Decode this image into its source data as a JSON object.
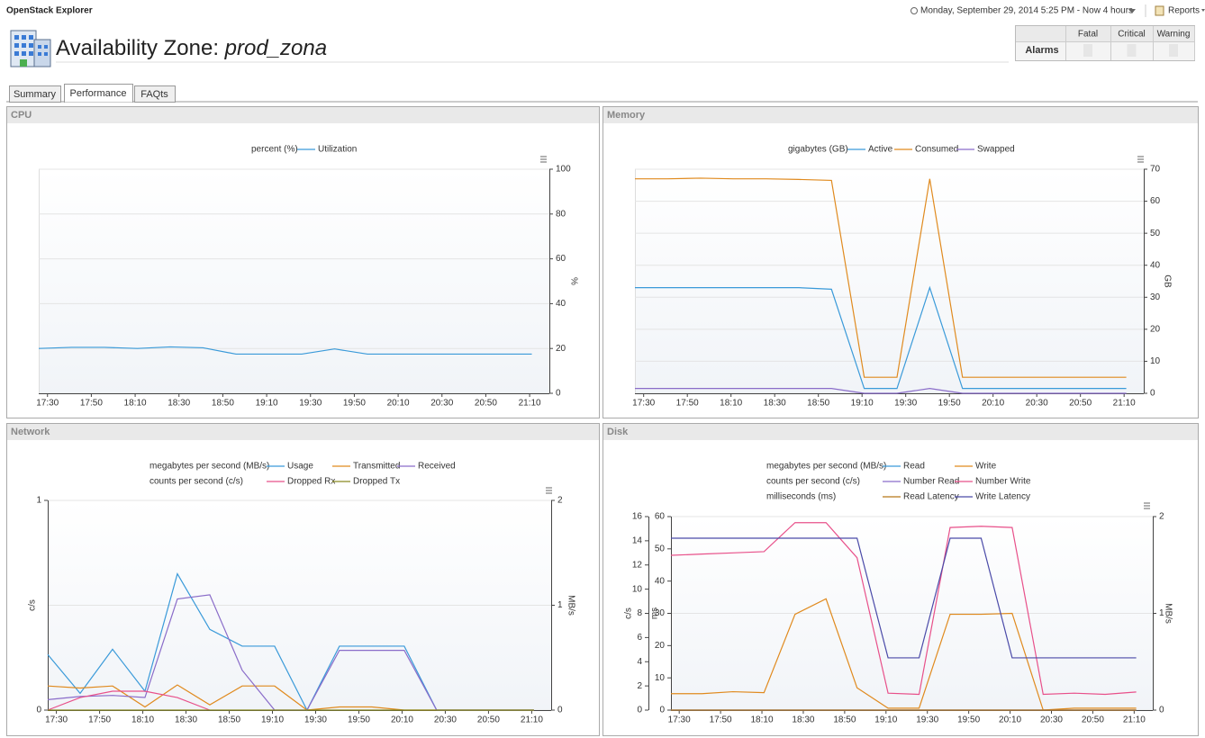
{
  "header": {
    "app_title": "OpenStack Explorer",
    "time_range": "Monday, September 29, 2014 5:25 PM - Now 4 hours",
    "reports": "Reports",
    "title_prefix": "Availability Zone:",
    "title_name": "prod_zona"
  },
  "alarms": {
    "columns": [
      "Fatal",
      "Critical",
      "Warning"
    ],
    "row_label": "Alarms"
  },
  "tabs": [
    "Summary",
    "Performance",
    "FAQts"
  ],
  "active_tab": 1,
  "chart_data": [
    {
      "type": "line",
      "title": "CPU",
      "x": [
        "17:26",
        "17:41",
        "17:56",
        "18:11",
        "18:26",
        "18:41",
        "18:56",
        "19:11",
        "19:26",
        "19:41",
        "19:56",
        "20:11",
        "20:26",
        "20:41",
        "20:56",
        "21:11"
      ],
      "xlim": [
        "17:26",
        "21:19"
      ],
      "xticks": [
        "17:30",
        "17:50",
        "18:10",
        "18:30",
        "18:50",
        "19:10",
        "19:30",
        "19:50",
        "20:10",
        "20:30",
        "20:50",
        "21:10"
      ],
      "ylabel": "%",
      "ylim": [
        0,
        100
      ],
      "yticks": [
        0,
        20,
        40,
        60,
        80,
        100
      ],
      "grid": "y",
      "series_groups": [
        {
          "unit": "percent (%)",
          "series": [
            {
              "name": "Utilization",
              "color": "#3a9ad9",
              "values": [
                20,
                20.5,
                20.5,
                20,
                20.7,
                20.3,
                17.5,
                17.5,
                17.5,
                19.8,
                17.5,
                17.5,
                17.5,
                17.5,
                17.5,
                17.5
              ]
            }
          ]
        }
      ]
    },
    {
      "type": "line",
      "title": "Memory",
      "x": [
        "17:26",
        "17:41",
        "17:56",
        "18:11",
        "18:26",
        "18:41",
        "18:56",
        "19:11",
        "19:26",
        "19:41",
        "19:56",
        "20:11",
        "20:26",
        "20:41",
        "20:56",
        "21:11"
      ],
      "xlim": [
        "17:26",
        "21:19"
      ],
      "xticks": [
        "17:30",
        "17:50",
        "18:10",
        "18:30",
        "18:50",
        "19:10",
        "19:30",
        "19:50",
        "20:10",
        "20:30",
        "20:50",
        "21:10"
      ],
      "ylabel": "GB",
      "ylim": [
        0,
        70
      ],
      "yticks": [
        0,
        10,
        20,
        30,
        40,
        50,
        60,
        70
      ],
      "grid": "y",
      "series_groups": [
        {
          "unit": "gigabytes (GB)",
          "series": [
            {
              "name": "Active",
              "color": "#3a9ad9",
              "values": [
                33,
                33,
                33,
                33,
                33,
                33,
                32.5,
                1.5,
                1.5,
                33,
                1.5,
                1.5,
                1.5,
                1.5,
                1.5,
                1.5
              ]
            },
            {
              "name": "Consumed",
              "color": "#e08a1e",
              "values": [
                67,
                67,
                67.2,
                67,
                67,
                66.8,
                66.5,
                5,
                5,
                67,
                5,
                5,
                5,
                5,
                5,
                5
              ]
            },
            {
              "name": "Swapped",
              "color": "#8a6cc9",
              "values": [
                1.5,
                1.5,
                1.5,
                1.5,
                1.5,
                1.5,
                1.5,
                0,
                0,
                1.5,
                0,
                0,
                0,
                0,
                0,
                0
              ]
            }
          ]
        }
      ]
    },
    {
      "type": "line",
      "title": "Network",
      "x": [
        "17:26",
        "17:41",
        "17:56",
        "18:11",
        "18:26",
        "18:41",
        "18:56",
        "19:11",
        "19:26",
        "19:41",
        "19:56",
        "20:11",
        "20:26",
        "20:41",
        "20:56",
        "21:11"
      ],
      "xlim": [
        "17:26",
        "21:19"
      ],
      "xticks": [
        "17:30",
        "17:50",
        "18:10",
        "18:30",
        "18:50",
        "19:10",
        "19:30",
        "19:50",
        "20:10",
        "20:30",
        "20:50",
        "21:10"
      ],
      "ylabel": "c/s",
      "ylim": [
        0,
        1
      ],
      "yticks": [
        0,
        1
      ],
      "y2label": "MB/s",
      "y2lim": [
        0,
        2
      ],
      "y2ticks": [
        0,
        1,
        2
      ],
      "grid": "y2",
      "series_groups": [
        {
          "unit": "megabytes per second (MB/s)",
          "series": [
            {
              "name": "Usage",
              "color": "#3a9ad9",
              "axis": "y2",
              "values": [
                0.53,
                0.16,
                0.58,
                0.18,
                1.3,
                0.77,
                0.61,
                0.61,
                0,
                0.61,
                0.61,
                0.61,
                0,
                0,
                0,
                0
              ]
            },
            {
              "name": "Transmitted",
              "color": "#e08a1e",
              "axis": "y2",
              "values": [
                0.23,
                0.21,
                0.23,
                0.03,
                0.24,
                0.05,
                0.23,
                0.23,
                0,
                0.03,
                0.03,
                0,
                0,
                0,
                0,
                0
              ]
            },
            {
              "name": "Received",
              "color": "#8a6cc9",
              "axis": "y2",
              "values": [
                0.1,
                0.13,
                0.14,
                0.12,
                1.06,
                1.1,
                0.38,
                0,
                0,
                0.57,
                0.57,
                0.57,
                0,
                0,
                0,
                0
              ]
            }
          ]
        },
        {
          "unit": "counts per second (c/s)",
          "series": [
            {
              "name": "Dropped Rx",
              "color": "#e8508a",
              "values": [
                0,
                0.06,
                0.09,
                0.09,
                0.06,
                0,
                null,
                null,
                null,
                null,
                null,
                null,
                null,
                null,
                null,
                null
              ]
            },
            {
              "name": "Dropped Tx",
              "color": "#8a8a20",
              "values": [
                0,
                0,
                0,
                0,
                0,
                0,
                0,
                0,
                0,
                0,
                0,
                0,
                0,
                0,
                0,
                0
              ]
            }
          ]
        }
      ]
    },
    {
      "type": "line",
      "title": "Disk",
      "x": [
        "17:26",
        "17:41",
        "17:56",
        "18:11",
        "18:26",
        "18:41",
        "18:56",
        "19:11",
        "19:26",
        "19:41",
        "19:56",
        "20:11",
        "20:26",
        "20:41",
        "20:56",
        "21:11"
      ],
      "xlim": [
        "17:26",
        "21:19"
      ],
      "xticks": [
        "17:30",
        "17:50",
        "18:10",
        "18:30",
        "18:50",
        "19:10",
        "19:30",
        "19:50",
        "20:10",
        "20:30",
        "20:50",
        "21:10"
      ],
      "ylabel": "c/s",
      "ylim": [
        0,
        16
      ],
      "yticks": [
        0,
        2,
        4,
        6,
        8,
        10,
        12,
        14,
        16
      ],
      "y3label": "ms",
      "y3lim": [
        0,
        60
      ],
      "y3ticks": [
        0,
        10,
        20,
        30,
        40,
        50,
        60
      ],
      "y2label": "MB/s",
      "y2lim": [
        0,
        2
      ],
      "y2ticks": [
        0,
        1,
        2
      ],
      "grid": "y2",
      "series_groups": [
        {
          "unit": "megabytes per second (MB/s)",
          "series": [
            {
              "name": "Read",
              "color": "#3a9ad9",
              "axis": "y2",
              "values": [
                0,
                0,
                0,
                0,
                0,
                0,
                0,
                0,
                0,
                0,
                0,
                0,
                0,
                0,
                0,
                0
              ]
            },
            {
              "name": "Write",
              "color": "#e08a1e",
              "axis": "y2",
              "values": [
                0.17,
                0.17,
                0.19,
                0.18,
                0.99,
                1.15,
                0.23,
                0.02,
                0.02,
                0.99,
                0.99,
                1.0,
                0,
                0.02,
                0.02,
                0.02
              ]
            }
          ]
        },
        {
          "unit": "counts per second (c/s)",
          "series": [
            {
              "name": "Number Read",
              "color": "#8a6cc9",
              "values": [
                0,
                0,
                0,
                0,
                0,
                0,
                0,
                0,
                0,
                0,
                0,
                0,
                0,
                0,
                0,
                0
              ]
            },
            {
              "name": "Number Write",
              "color": "#e8508a",
              "values": [
                12.8,
                12.9,
                13,
                13.1,
                15.5,
                15.5,
                12.6,
                1.4,
                1.3,
                15.1,
                15.2,
                15.1,
                1.3,
                1.4,
                1.3,
                1.5
              ]
            }
          ]
        },
        {
          "unit": "milliseconds (ms)",
          "series": [
            {
              "name": "Read Latency",
              "color": "#b87818",
              "axis": "y3",
              "values": [
                0,
                0,
                0,
                0,
                0,
                0,
                0,
                0,
                0,
                0,
                0,
                0,
                0,
                0,
                0,
                0
              ]
            },
            {
              "name": "Write Latency",
              "color": "#4a4aa8",
              "axis": "y3",
              "values": [
                53.3,
                53.3,
                53.3,
                53.3,
                53.3,
                53.3,
                53.3,
                16.2,
                16.2,
                53.3,
                53.3,
                16.2,
                16.2,
                16.2,
                16.2,
                16.2
              ]
            }
          ]
        }
      ]
    }
  ]
}
